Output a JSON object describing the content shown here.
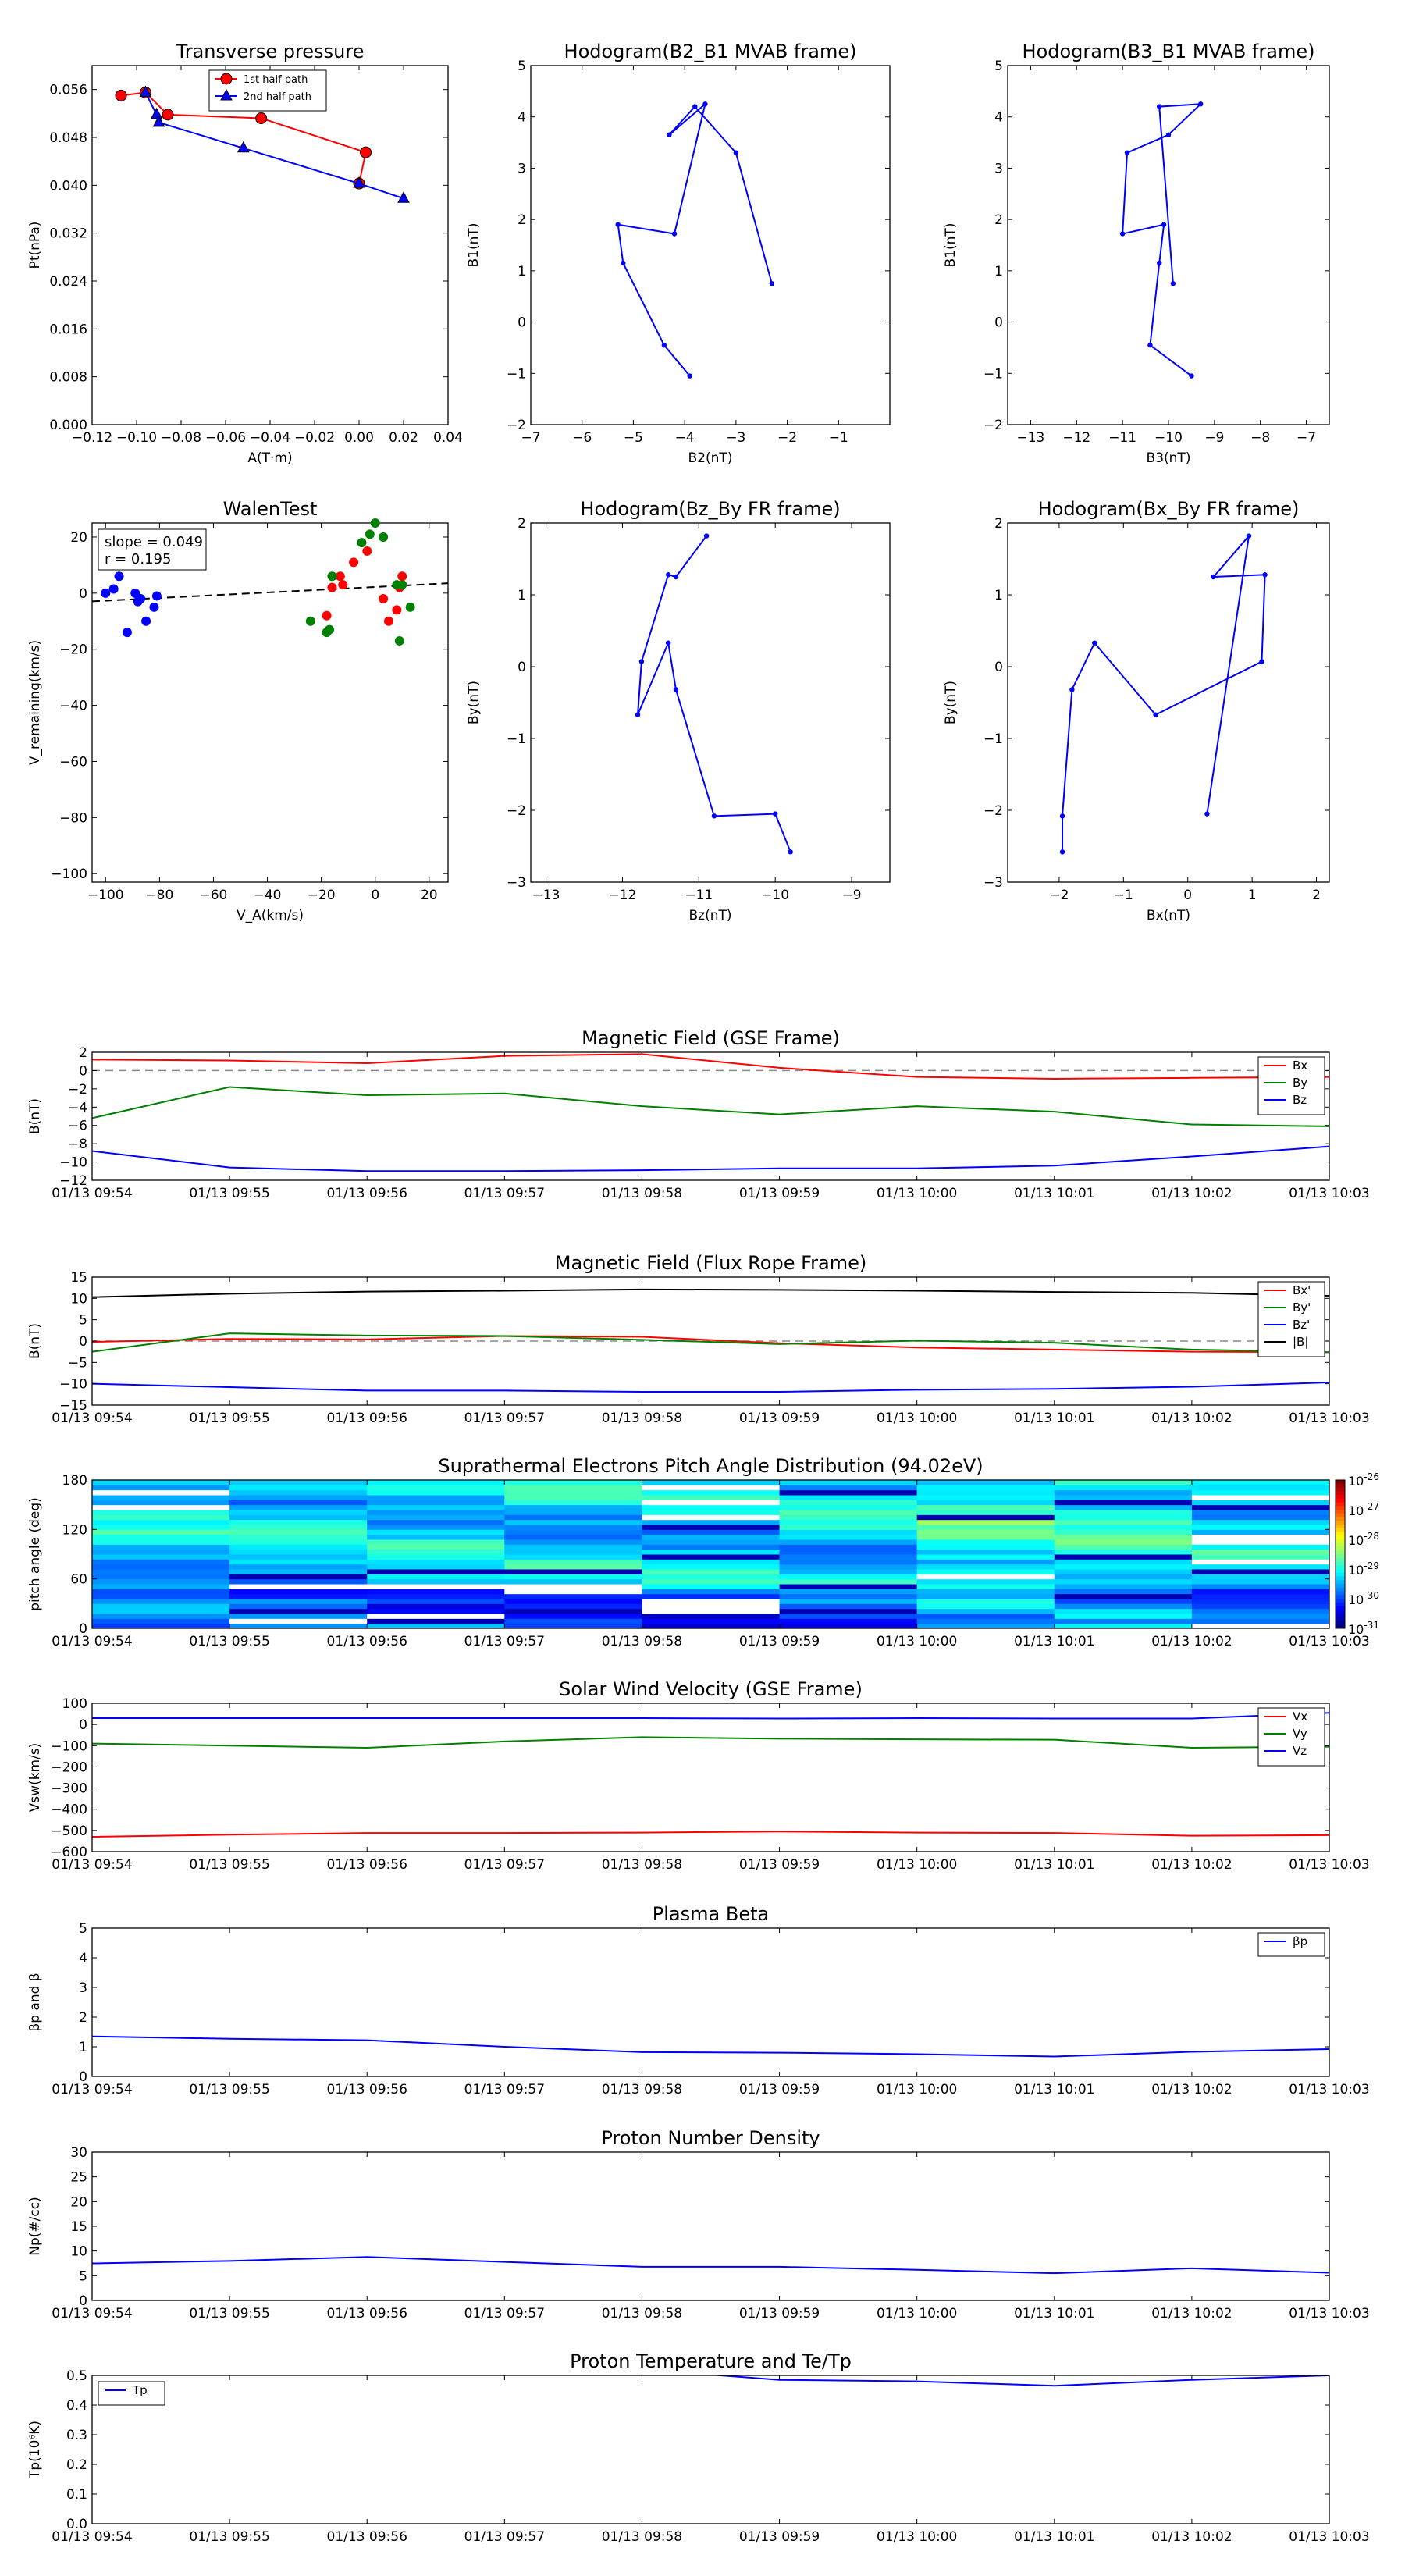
{
  "time_ticks": [
    "01/13 09:54",
    "01/13 09:55",
    "01/13 09:56",
    "01/13 09:57",
    "01/13 09:58",
    "01/13 09:59",
    "01/13 10:00",
    "01/13 10:01",
    "01/13 10:02",
    "01/13 10:03"
  ],
  "colors": {
    "red": "#ff0000",
    "green": "#008000",
    "blue": "#0000ff",
    "black": "#000000",
    "navy": "#00008b",
    "dark_red": "#a00000"
  },
  "chart_data": [
    {
      "id": "transverse-pressure",
      "type": "line",
      "title": "Transverse pressure",
      "xlabel": "A(T·m)",
      "ylabel": "Pt(nPa)",
      "xlim": [
        -0.12,
        0.04
      ],
      "ylim": [
        0,
        0.06
      ],
      "xticks": [
        "−0.12",
        "−0.10",
        "−0.08",
        "−0.06",
        "−0.04",
        "−0.02",
        "0.00",
        "0.02",
        "0.04"
      ],
      "yticks": [
        "0.000",
        "0.008",
        "0.016",
        "0.024",
        "0.032",
        "0.040",
        "0.048",
        "0.056"
      ],
      "legend_position": "top-center",
      "series": [
        {
          "name": "1st half path",
          "color": "#ff0000",
          "marker": "circle",
          "x": [
            -0.107,
            -0.096,
            -0.086,
            -0.044,
            0.003,
            0.0
          ],
          "y": [
            0.055,
            0.0555,
            0.0518,
            0.0512,
            0.0455,
            0.0403
          ]
        },
        {
          "name": "2nd half path",
          "color": "#0000ff",
          "marker": "triangle",
          "x": [
            -0.096,
            -0.091,
            -0.09,
            -0.052,
            0.0,
            0.02
          ],
          "y": [
            0.0555,
            0.0518,
            0.0505,
            0.0462,
            0.0403,
            0.0378
          ]
        }
      ]
    },
    {
      "id": "hodogram-b2-b1",
      "type": "line",
      "title": "Hodogram(B2_B1 MVAB frame)",
      "xlabel": "B2(nT)",
      "ylabel": "B1(nT)",
      "xlim": [
        -7,
        0
      ],
      "ylim": [
        -2,
        5
      ],
      "xticks": [
        "−7",
        "−6",
        "−5",
        "−4",
        "−3",
        "−2",
        "−1"
      ],
      "yticks": [
        "−2",
        "−1",
        "0",
        "1",
        "2",
        "3",
        "4",
        "5"
      ],
      "series": [
        {
          "name": "",
          "color": "#0000ff",
          "x": [
            -2.3,
            -3.0,
            -3.8,
            -4.3,
            -3.6,
            -4.2,
            -5.3,
            -5.2,
            -4.4,
            -3.9
          ],
          "y": [
            0.75,
            3.3,
            4.2,
            3.65,
            4.25,
            1.72,
            1.9,
            1.15,
            -0.45,
            -1.05
          ]
        }
      ]
    },
    {
      "id": "hodogram-b3-b1",
      "type": "line",
      "title": "Hodogram(B3_B1 MVAB frame)",
      "xlabel": "B3(nT)",
      "ylabel": "B1(nT)",
      "xlim": [
        -13.5,
        -6.5
      ],
      "ylim": [
        -2,
        5
      ],
      "xticks": [
        "−13",
        "−12",
        "−11",
        "−10",
        "−9",
        "−8",
        "−7"
      ],
      "yticks": [
        "−2",
        "−1",
        "0",
        "1",
        "2",
        "3",
        "4",
        "5"
      ],
      "series": [
        {
          "name": "",
          "color": "#0000ff",
          "x": [
            -9.9,
            -10.2,
            -9.3,
            -10.0,
            -10.9,
            -11.0,
            -10.1,
            -10.2,
            -10.4,
            -9.5
          ],
          "y": [
            0.75,
            4.2,
            4.25,
            3.65,
            3.3,
            1.72,
            1.9,
            1.15,
            -0.45,
            -1.05
          ]
        }
      ]
    },
    {
      "id": "walen-test",
      "type": "scatter",
      "title": "WalenTest",
      "xlabel": "V_A(km/s)",
      "ylabel": "V_remaining(km/s)",
      "xlim": [
        -105,
        27
      ],
      "ylim": [
        -103,
        25
      ],
      "xticks": [
        "−100",
        "−80",
        "−60",
        "−40",
        "−20",
        "0",
        "20"
      ],
      "yticks": [
        "−100",
        "−80",
        "−60",
        "−40",
        "−20",
        "0",
        "20"
      ],
      "annotation": [
        "slope = 0.049",
        "r = 0.195"
      ],
      "fit_line": {
        "slope": 0.049,
        "intercept": 2.2
      },
      "series": [
        {
          "name": "",
          "color": "#0000ff",
          "x": [
            -100,
            -97,
            -95,
            -92,
            -89,
            -87,
            -85,
            -82,
            -81,
            -88
          ],
          "y": [
            0,
            1.5,
            6,
            -14,
            0,
            -2,
            -10,
            -5,
            -1,
            -3
          ]
        },
        {
          "name": "",
          "color": "#ff0000",
          "x": [
            -18,
            -16,
            -13,
            -8,
            -3,
            3,
            5,
            8,
            10,
            9,
            -12
          ],
          "y": [
            -8,
            2,
            6,
            11,
            15,
            -2,
            -10,
            -6,
            6,
            2,
            3
          ]
        },
        {
          "name": "",
          "color": "#008000",
          "x": [
            -24,
            -18,
            -16,
            -17,
            -5,
            -2,
            0,
            3,
            9,
            10,
            13,
            8
          ],
          "y": [
            -10,
            -14,
            6,
            -13,
            18,
            21,
            25,
            20,
            -17,
            3,
            -5,
            3
          ]
        }
      ]
    },
    {
      "id": "hodogram-bz-by",
      "type": "line",
      "title": "Hodogram(Bz_By FR frame)",
      "xlabel": "Bz(nT)",
      "ylabel": "By(nT)",
      "xlim": [
        -13.2,
        -8.5
      ],
      "ylim": [
        -3,
        2
      ],
      "xticks": [
        "−13",
        "−12",
        "−11",
        "−10",
        "−9"
      ],
      "yticks": [
        "−3",
        "−2",
        "−1",
        "0",
        "1",
        "2"
      ],
      "series": [
        {
          "name": "",
          "color": "#0000ff",
          "x": [
            -9.8,
            -10.0,
            -10.8,
            -11.3,
            -11.4,
            -11.8,
            -11.75,
            -11.4,
            -11.3,
            -10.9
          ],
          "y": [
            -2.58,
            -2.05,
            -2.08,
            -0.32,
            0.33,
            -0.67,
            0.07,
            1.28,
            1.25,
            1.82
          ]
        }
      ]
    },
    {
      "id": "hodogram-bx-by",
      "type": "line",
      "title": "Hodogram(Bx_By FR frame)",
      "xlabel": "Bx(nT)",
      "ylabel": "By(nT)",
      "xlim": [
        -2.8,
        2.2
      ],
      "ylim": [
        -3,
        2
      ],
      "xticks": [
        "−2",
        "−1",
        "0",
        "1",
        "2"
      ],
      "yticks": [
        "−3",
        "−2",
        "−1",
        "0",
        "1",
        "2"
      ],
      "series": [
        {
          "name": "",
          "color": "#0000ff",
          "x": [
            -1.95,
            -1.95,
            -1.8,
            -1.45,
            -0.5,
            1.15,
            1.2,
            0.4,
            0.95,
            0.3
          ],
          "y": [
            -2.58,
            -2.08,
            -0.32,
            0.33,
            -0.67,
            0.07,
            1.28,
            1.25,
            1.82,
            -2.05
          ]
        }
      ]
    },
    {
      "id": "magnetic-field-gse",
      "type": "line",
      "title": "Magnetic Field (GSE Frame)",
      "xlabel": "",
      "ylabel": "B(nT)",
      "ylim": [
        -12,
        2
      ],
      "yticks": [
        "−12",
        "−10",
        "−8",
        "−6",
        "−4",
        "−2",
        "0",
        "2"
      ],
      "zero_line": true,
      "legend_position": "top-right",
      "x": [
        0,
        1,
        2,
        3,
        4,
        5,
        6,
        7,
        8,
        9
      ],
      "series": [
        {
          "name": "Bx",
          "color": "#ff0000",
          "values": [
            1.2,
            1.1,
            0.8,
            1.6,
            1.8,
            0.3,
            -0.7,
            -0.9,
            -0.8,
            -0.7
          ]
        },
        {
          "name": "By",
          "color": "#008000",
          "values": [
            -5.2,
            -1.8,
            -2.7,
            -2.5,
            -3.9,
            -4.8,
            -3.9,
            -4.5,
            -5.9,
            -6.1
          ]
        },
        {
          "name": "Bz",
          "color": "#0000ff",
          "values": [
            -8.8,
            -10.6,
            -11.0,
            -11.0,
            -10.9,
            -10.7,
            -10.7,
            -10.4,
            -9.4,
            -8.3
          ]
        }
      ]
    },
    {
      "id": "magnetic-field-flux-rope",
      "type": "line",
      "title": "Magnetic Field (Flux Rope Frame)",
      "xlabel": "",
      "ylabel": "B(nT)",
      "ylim": [
        -15,
        15
      ],
      "yticks": [
        "−15",
        "−10",
        "−5",
        "0",
        "5",
        "10",
        "15"
      ],
      "zero_line": true,
      "legend_position": "top-right",
      "x": [
        0,
        1,
        2,
        3,
        4,
        5,
        6,
        7,
        8,
        9
      ],
      "series": [
        {
          "name": "Bx'",
          "color": "#ff0000",
          "values": [
            -0.2,
            0.5,
            0.4,
            1.2,
            1.0,
            -0.5,
            -1.5,
            -2.0,
            -2.5,
            -2.6
          ]
        },
        {
          "name": "By'",
          "color": "#008000",
          "values": [
            -2.5,
            1.8,
            1.3,
            1.2,
            0.3,
            -0.7,
            0.1,
            -0.4,
            -2.0,
            -2.6
          ]
        },
        {
          "name": "Bz'",
          "color": "#0000ff",
          "values": [
            -10.0,
            -10.8,
            -11.6,
            -11.6,
            -11.9,
            -11.9,
            -11.4,
            -11.2,
            -10.7,
            -9.7
          ]
        },
        {
          "name": "|B|",
          "color": "#000000",
          "values": [
            10.3,
            11.1,
            11.6,
            11.8,
            12.1,
            12.0,
            11.8,
            11.5,
            11.3,
            10.6
          ]
        }
      ]
    },
    {
      "id": "pitch-angle",
      "type": "heatmap",
      "title": "Suprathermal Electrons Pitch Angle Distribution (94.02eV)",
      "xlabel": "",
      "ylabel": "pitch angle (deg)",
      "ylim": [
        0,
        180
      ],
      "yticks": [
        "0",
        "60",
        "120",
        "180"
      ],
      "colorbar_ticks": [
        "-26",
        "-27",
        "-28",
        "-29",
        "-30",
        "-31"
      ],
      "colorbar_base": "10",
      "time_bins": 9,
      "angle_bins": 30
    },
    {
      "id": "solar-wind-velocity",
      "type": "line",
      "title": "Solar Wind Velocity (GSE Frame)",
      "xlabel": "",
      "ylabel": "Vsw(km/s)",
      "ylim": [
        -600,
        100
      ],
      "yticks": [
        "−600",
        "−500",
        "−400",
        "−300",
        "−200",
        "−100",
        "0",
        "100"
      ],
      "legend_position": "top-right",
      "x": [
        0,
        1,
        2,
        3,
        4,
        5,
        6,
        7,
        8,
        9
      ],
      "series": [
        {
          "name": "Vx",
          "color": "#ff0000",
          "values": [
            -530,
            -520,
            -512,
            -512,
            -510,
            -505,
            -510,
            -512,
            -525,
            -522
          ]
        },
        {
          "name": "Vy",
          "color": "#008000",
          "values": [
            -90,
            -100,
            -110,
            -80,
            -60,
            -67,
            -70,
            -72,
            -110,
            -105
          ]
        },
        {
          "name": "Vz",
          "color": "#0000ff",
          "values": [
            30,
            30,
            30,
            30,
            30,
            28,
            30,
            28,
            28,
            55
          ]
        }
      ]
    },
    {
      "id": "plasma-beta",
      "type": "line",
      "title": "Plasma Beta",
      "xlabel": "",
      "ylabel": "βp and β",
      "ylim": [
        0,
        5
      ],
      "yticks": [
        "0",
        "1",
        "2",
        "3",
        "4",
        "5"
      ],
      "legend_position": "top-right",
      "x": [
        0,
        1,
        2,
        3,
        4,
        5,
        6,
        7,
        8,
        9
      ],
      "series": [
        {
          "name": "βp",
          "color": "#0000ff",
          "values": [
            1.35,
            1.27,
            1.22,
            1.0,
            0.82,
            0.8,
            0.75,
            0.67,
            0.83,
            0.92
          ]
        }
      ]
    },
    {
      "id": "proton-density",
      "type": "line",
      "title": "Proton Number Density",
      "xlabel": "",
      "ylabel": "Np(#/cc)",
      "ylim": [
        0,
        30
      ],
      "yticks": [
        "0",
        "5",
        "10",
        "15",
        "20",
        "25",
        "30"
      ],
      "x": [
        0,
        1,
        2,
        3,
        4,
        5,
        6,
        7,
        8,
        9
      ],
      "series": [
        {
          "name": "",
          "color": "#0000ff",
          "values": [
            7.5,
            8.0,
            8.8,
            7.8,
            6.8,
            6.8,
            6.2,
            5.5,
            6.5,
            5.6
          ]
        }
      ]
    },
    {
      "id": "proton-temperature",
      "type": "line",
      "title": "Proton Temperature and Te/Tp",
      "xlabel": "",
      "ylabel": "Tp(10⁶K)",
      "ylim": [
        0,
        0.5
      ],
      "yticks": [
        "0.0",
        "0.1",
        "0.2",
        "0.3",
        "0.4",
        "0.5"
      ],
      "legend_position": "top-left",
      "x": [
        0,
        1,
        2,
        3,
        4,
        5,
        6,
        7,
        8,
        9
      ],
      "series": [
        {
          "name": "Tp",
          "color": "#0000ff",
          "values": [
            0.52,
            0.53,
            0.53,
            0.53,
            0.52,
            0.485,
            0.48,
            0.465,
            0.485,
            0.5
          ]
        }
      ]
    }
  ]
}
